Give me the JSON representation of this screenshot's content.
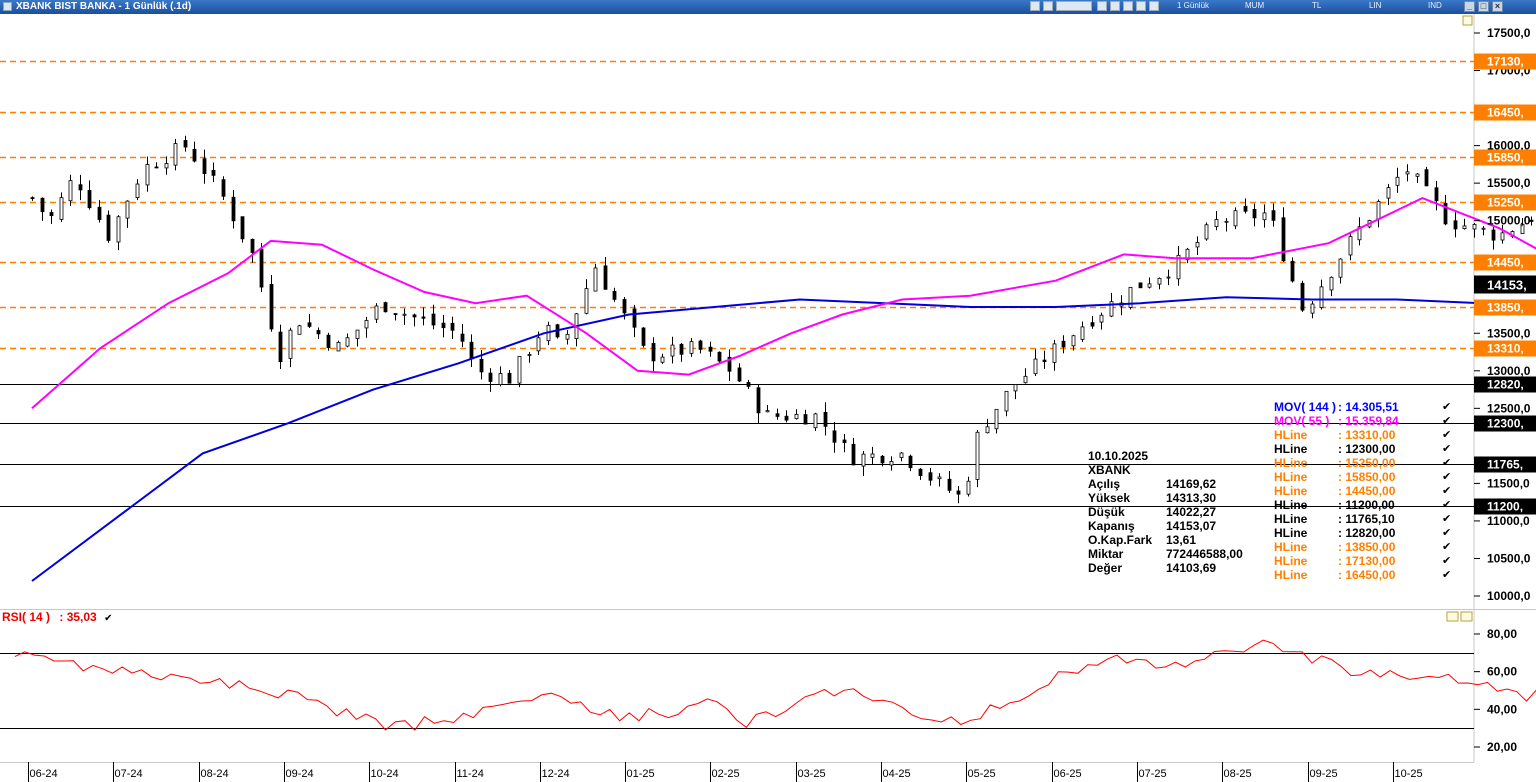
{
  "window": {
    "title": "XBANK BIST BANKA - 1 Günlük (.1d)",
    "toolbar_labels": [
      "1 Günlük",
      "MUM",
      "TL",
      "LIN",
      "IND"
    ]
  },
  "info_panel": {
    "date": "10.10.2025",
    "symbol": "XBANK",
    "rows": [
      {
        "label": "Açılış",
        "value": "14169,62"
      },
      {
        "label": "Yüksek",
        "value": "14313,30"
      },
      {
        "label": "Düşük",
        "value": "14022,27"
      },
      {
        "label": "Kapanış",
        "value": "14153,07"
      },
      {
        "label": "O.Kap.Fark",
        "value": "13,61"
      },
      {
        "label": "Miktar",
        "value": "772446588,00"
      },
      {
        "label": "Değer",
        "value": "14103,69"
      }
    ]
  },
  "legend": [
    {
      "label": "MOV( 144 )",
      "value": ": 14.305,51",
      "color": "#0000ff"
    },
    {
      "label": "MOV( 55 )",
      "value": ": 15.359,84",
      "color": "#ff00ff"
    },
    {
      "label": "HLine",
      "value": ": 13310,00",
      "color": "#ff8000"
    },
    {
      "label": "HLine",
      "value": ": 12300,00",
      "color": "#000000"
    },
    {
      "label": "HLine",
      "value": ": 15250,00",
      "color": "#ff8000"
    },
    {
      "label": "HLine",
      "value": ": 15850,00",
      "color": "#ff8000"
    },
    {
      "label": "HLine",
      "value": ": 14450,00",
      "color": "#ff8000"
    },
    {
      "label": "HLine",
      "value": ": 11200,00",
      "color": "#000000"
    },
    {
      "label": "HLine",
      "value": ": 11765,10",
      "color": "#000000"
    },
    {
      "label": "HLine",
      "value": ": 12820,00",
      "color": "#000000"
    },
    {
      "label": "HLine",
      "value": ": 13850,00",
      "color": "#ff8000"
    },
    {
      "label": "HLine",
      "value": ": 17130,00",
      "color": "#ff8000"
    },
    {
      "label": "HLine",
      "value": ": 16450,00",
      "color": "#ff8000"
    }
  ],
  "rsi": {
    "label": "RSI( 14 )",
    "value": ": 35,03",
    "color": "#ff0000"
  },
  "chart_data": [
    {
      "type": "candlestick",
      "ylim": [
        10000,
        17500
      ],
      "yticks": [
        {
          "v": 17500,
          "t": "17500,0"
        },
        {
          "v": 17000,
          "t": "17000,0"
        },
        {
          "v": 16000,
          "t": "16000,0"
        },
        {
          "v": 15500,
          "t": "15500,0"
        },
        {
          "v": 15000,
          "t": "15000,0"
        },
        {
          "v": 13500,
          "t": "13500,0"
        },
        {
          "v": 13000,
          "t": "13000,0"
        },
        {
          "v": 12500,
          "t": "12500,0"
        },
        {
          "v": 11500,
          "t": "11500,0"
        },
        {
          "v": 11000,
          "t": "11000,0"
        },
        {
          "v": 10500,
          "t": "10500,0"
        },
        {
          "v": 10000,
          "t": "10000,0"
        }
      ],
      "x_months": [
        "06-24",
        "07-24",
        "08-24",
        "09-24",
        "10-24",
        "11-24",
        "12-24",
        "01-25",
        "02-25",
        "03-25",
        "04-25",
        "05-25",
        "06-25",
        "07-25",
        "08-25",
        "09-25",
        "10-25"
      ],
      "hlines": [
        {
          "value": 17130,
          "label": "17130,",
          "color": "#ff8000",
          "style": "dashed"
        },
        {
          "value": 16450,
          "label": "16450,",
          "color": "#ff8000",
          "style": "dashed"
        },
        {
          "value": 15850,
          "label": "15850,",
          "color": "#ff8000",
          "style": "dashed"
        },
        {
          "value": 15250,
          "label": "15250,",
          "color": "#ff8000",
          "style": "dashed"
        },
        {
          "value": 14450,
          "label": "14450,",
          "color": "#ff8000",
          "style": "dashed"
        },
        {
          "value": 13850,
          "label": "13850,",
          "color": "#ff8000",
          "style": "dashed"
        },
        {
          "value": 13310,
          "label": "13310,",
          "color": "#ff8000",
          "style": "dashed"
        },
        {
          "value": 12820,
          "label": "12820,",
          "color": "#000000",
          "style": "solid"
        },
        {
          "value": 12300,
          "label": "12300,",
          "color": "#000000",
          "style": "solid"
        },
        {
          "value": 11765,
          "label": "11765,",
          "color": "#000000",
          "style": "solid"
        },
        {
          "value": 11200,
          "label": "11200,",
          "color": "#000000",
          "style": "solid"
        }
      ],
      "last_price": {
        "value": 14153,
        "label": "14153,"
      },
      "close_path": [
        [
          0,
          15300
        ],
        [
          0.2,
          15000
        ],
        [
          0.5,
          15600
        ],
        [
          0.9,
          14800
        ],
        [
          1.3,
          15700
        ],
        [
          1.8,
          16000
        ],
        [
          2.2,
          15400
        ],
        [
          2.6,
          14500
        ],
        [
          2.9,
          13200
        ],
        [
          3.1,
          13700
        ],
        [
          3.6,
          13300
        ],
        [
          4.1,
          13900
        ],
        [
          4.5,
          13700
        ],
        [
          5.0,
          13500
        ],
        [
          5.2,
          13000
        ],
        [
          5.6,
          12900
        ],
        [
          6.0,
          13600
        ],
        [
          6.2,
          13300
        ],
        [
          6.6,
          14400
        ],
        [
          7.2,
          13200
        ],
        [
          7.8,
          13300
        ],
        [
          8.2,
          13000
        ],
        [
          8.6,
          12400
        ],
        [
          9.2,
          12400
        ],
        [
          9.6,
          11850
        ],
        [
          10.2,
          11900
        ],
        [
          10.5,
          11600
        ],
        [
          10.9,
          11300
        ],
        [
          11.1,
          12200
        ],
        [
          11.5,
          12800
        ],
        [
          11.9,
          13200
        ],
        [
          12.3,
          13600
        ],
        [
          12.9,
          14100
        ],
        [
          13.4,
          14400
        ],
        [
          13.9,
          15000
        ],
        [
          14.5,
          15100
        ],
        [
          14.9,
          13800
        ],
        [
          15.5,
          14800
        ],
        [
          16.1,
          15700
        ],
        [
          16.6,
          15000
        ],
        [
          17.2,
          14800
        ],
        [
          17.8,
          15200
        ],
        [
          18.3,
          14500
        ],
        [
          18.8,
          14300
        ],
        [
          19.6,
          14600
        ],
        [
          20.1,
          15700
        ],
        [
          20.8,
          16400
        ],
        [
          21.2,
          16900
        ],
        [
          21.6,
          16700
        ],
        [
          22.0,
          15000
        ],
        [
          22.2,
          13300
        ],
        [
          22.6,
          12500
        ],
        [
          23.3,
          12300
        ],
        [
          23.8,
          12000
        ],
        [
          24.3,
          11800
        ],
        [
          24.9,
          11600
        ],
        [
          25.4,
          11500
        ],
        [
          25.7,
          12300
        ],
        [
          26.3,
          12500
        ],
        [
          26.8,
          12200
        ],
        [
          27.2,
          12800
        ],
        [
          27.8,
          13500
        ],
        [
          28.2,
          13000
        ],
        [
          28.5,
          12800
        ],
        [
          29.0,
          13700
        ],
        [
          29.4,
          15200
        ],
        [
          29.8,
          15700
        ],
        [
          30.2,
          16400
        ],
        [
          30.8,
          16000
        ],
        [
          31.3,
          16200
        ],
        [
          31.8,
          16300
        ],
        [
          32.3,
          15800
        ],
        [
          33.0,
          16300
        ],
        [
          33.4,
          16650
        ],
        [
          33.9,
          16200
        ],
        [
          34.3,
          14700
        ],
        [
          34.8,
          15200
        ],
        [
          35.2,
          15600
        ],
        [
          35.6,
          16400
        ],
        [
          36.0,
          15800
        ],
        [
          36.3,
          15300
        ],
        [
          36.6,
          15700
        ],
        [
          36.9,
          14900
        ],
        [
          37.3,
          14200
        ],
        [
          37.5,
          14100
        ]
      ],
      "mov144_path": [
        [
          0,
          10200
        ],
        [
          1,
          11050
        ],
        [
          2,
          11900
        ],
        [
          3,
          12300
        ],
        [
          4,
          12750
        ],
        [
          5,
          13100
        ],
        [
          6,
          13500
        ],
        [
          7,
          13750
        ],
        [
          8,
          13850
        ],
        [
          9,
          13950
        ],
        [
          10,
          13900
        ],
        [
          11,
          13850
        ],
        [
          12,
          13850
        ],
        [
          13,
          13900
        ],
        [
          14,
          13980
        ],
        [
          15,
          13950
        ],
        [
          16,
          13950
        ],
        [
          17,
          13900
        ],
        [
          18,
          13900
        ],
        [
          19,
          13980
        ],
        [
          20,
          13900
        ],
        [
          21,
          13930
        ],
        [
          22,
          14050
        ],
        [
          23,
          14000
        ],
        [
          24,
          13950
        ],
        [
          25,
          13900
        ],
        [
          26,
          13850
        ],
        [
          27,
          13850
        ],
        [
          28,
          13880
        ],
        [
          29,
          13900
        ],
        [
          30,
          14080
        ],
        [
          31,
          14150
        ],
        [
          32,
          14200
        ],
        [
          33,
          14230
        ],
        [
          34,
          14250
        ],
        [
          35,
          14280
        ],
        [
          36,
          14320
        ],
        [
          37.5,
          14300
        ]
      ],
      "mov55_path": [
        [
          0,
          12500
        ],
        [
          0.8,
          13300
        ],
        [
          1.6,
          13900
        ],
        [
          2.3,
          14300
        ],
        [
          2.8,
          14730
        ],
        [
          3.4,
          14680
        ],
        [
          4.0,
          14350
        ],
        [
          4.6,
          14050
        ],
        [
          5.2,
          13900
        ],
        [
          5.8,
          14000
        ],
        [
          6.5,
          13500
        ],
        [
          7.1,
          13000
        ],
        [
          7.7,
          12950
        ],
        [
          8.3,
          13200
        ],
        [
          8.9,
          13500
        ],
        [
          9.5,
          13750
        ],
        [
          10.2,
          13950
        ],
        [
          11.0,
          14000
        ],
        [
          12.0,
          14200
        ],
        [
          12.8,
          14550
        ],
        [
          13.4,
          14500
        ],
        [
          14.3,
          14500
        ],
        [
          15.2,
          14700
        ],
        [
          16.3,
          15300
        ],
        [
          17.2,
          14900
        ],
        [
          18.0,
          14400
        ],
        [
          18.8,
          14050
        ],
        [
          19.5,
          13700
        ],
        [
          20.2,
          13400
        ],
        [
          20.8,
          13100
        ],
        [
          21.4,
          12900
        ],
        [
          22.0,
          12950
        ],
        [
          22.6,
          13300
        ],
        [
          23.3,
          13800
        ],
        [
          24.0,
          14250
        ],
        [
          24.8,
          14650
        ],
        [
          25.6,
          15050
        ],
        [
          26.3,
          15350
        ],
        [
          27.0,
          15550
        ],
        [
          27.6,
          15450
        ],
        [
          28.3,
          15400
        ],
        [
          28.9,
          15400
        ],
        [
          29.6,
          15650
        ],
        [
          30.2,
          15700
        ],
        [
          30.8,
          15400
        ],
        [
          31.3,
          15300
        ],
        [
          31.8,
          15400
        ],
        [
          32.6,
          15300
        ],
        [
          33.4,
          15700
        ],
        [
          34.0,
          15800
        ],
        [
          34.8,
          15700
        ],
        [
          35.6,
          15600
        ],
        [
          36.3,
          15700
        ],
        [
          37.0,
          15600
        ],
        [
          37.5,
          15350
        ]
      ],
      "note": "x positions are in months since the 06-24 axis label"
    },
    {
      "type": "line",
      "name": "RSI( 14 )",
      "ylim": [
        14,
        86
      ],
      "yticks": [
        {
          "v": 80,
          "t": "80,00"
        },
        {
          "v": 60,
          "t": "60,00"
        },
        {
          "v": 40,
          "t": "40,00"
        },
        {
          "v": 20,
          "t": "20,00"
        }
      ],
      "reference_lines": [
        70,
        30
      ],
      "path": [
        [
          -0.2,
          70
        ],
        [
          0.8,
          62
        ],
        [
          1.6,
          58
        ],
        [
          2.4,
          52
        ],
        [
          3.0,
          48
        ],
        [
          3.7,
          38
        ],
        [
          4.2,
          30
        ],
        [
          4.8,
          35
        ],
        [
          5.6,
          42
        ],
        [
          6.2,
          48
        ],
        [
          6.8,
          36
        ],
        [
          7.4,
          38
        ],
        [
          8.0,
          44
        ],
        [
          8.4,
          32
        ],
        [
          9.0,
          45
        ],
        [
          9.6,
          52
        ],
        [
          10.1,
          40
        ],
        [
          10.7,
          32
        ],
        [
          11.1,
          36
        ],
        [
          11.6,
          48
        ],
        [
          12.2,
          62
        ],
        [
          12.8,
          66
        ],
        [
          13.5,
          62
        ],
        [
          14.1,
          72
        ],
        [
          14.6,
          74
        ],
        [
          15.2,
          64
        ],
        [
          15.8,
          58
        ],
        [
          16.4,
          60
        ],
        [
          17.0,
          52
        ],
        [
          17.5,
          46
        ],
        [
          18.1,
          52
        ],
        [
          18.8,
          56
        ],
        [
          19.5,
          52
        ],
        [
          20.1,
          62
        ],
        [
          20.6,
          74
        ],
        [
          21.2,
          70
        ],
        [
          21.6,
          72
        ],
        [
          22.0,
          48
        ],
        [
          22.2,
          30
        ],
        [
          22.8,
          24
        ],
        [
          23.4,
          30
        ],
        [
          24.0,
          28
        ],
        [
          24.6,
          26
        ],
        [
          25.2,
          30
        ],
        [
          25.9,
          36
        ],
        [
          26.5,
          46
        ],
        [
          27.2,
          56
        ],
        [
          27.8,
          52
        ],
        [
          28.3,
          58
        ],
        [
          28.9,
          64
        ],
        [
          29.3,
          58
        ],
        [
          29.8,
          66
        ],
        [
          30.3,
          74
        ],
        [
          30.7,
          80
        ],
        [
          31.2,
          76
        ],
        [
          31.8,
          62
        ],
        [
          32.4,
          66
        ],
        [
          33.0,
          60
        ],
        [
          33.6,
          56
        ],
        [
          34.2,
          62
        ],
        [
          34.7,
          54
        ],
        [
          35.3,
          48
        ],
        [
          35.8,
          32
        ],
        [
          36.2,
          40
        ],
        [
          36.6,
          46
        ],
        [
          37.0,
          56
        ],
        [
          37.3,
          44
        ],
        [
          37.8,
          40
        ],
        [
          38.1,
          35
        ]
      ]
    }
  ]
}
